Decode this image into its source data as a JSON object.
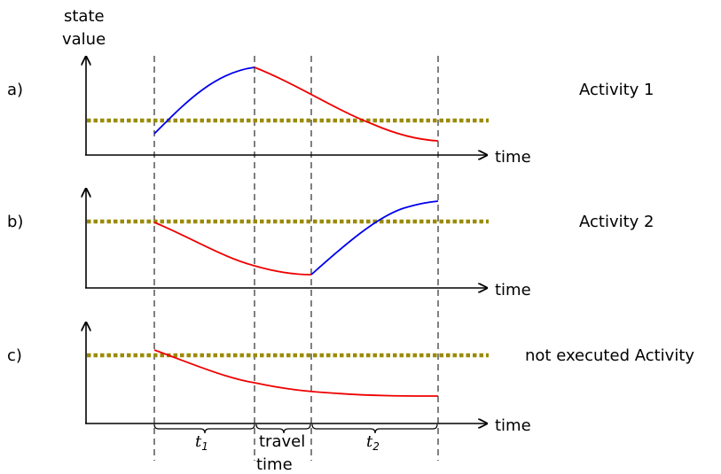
{
  "y_axis_label": [
    "state",
    "value"
  ],
  "panels": [
    {
      "label": "a)",
      "activity": "Activity 1",
      "x_label": "time",
      "curves": [
        {
          "color": "#0000ee",
          "trend": "rising",
          "phase": "t1"
        },
        {
          "color": "#ee0000",
          "trend": "falling",
          "phase": "travel-time and t2"
        }
      ]
    },
    {
      "label": "b)",
      "activity": "Activity 2",
      "x_label": "time",
      "curves": [
        {
          "color": "#ee0000",
          "trend": "falling",
          "phase": "t1 and travel-time"
        },
        {
          "color": "#0000ee",
          "trend": "rising",
          "phase": "t2"
        }
      ]
    },
    {
      "label": "c)",
      "activity": "not executed Activity",
      "x_label": "time",
      "curves": [
        {
          "color": "#ee0000",
          "trend": "falling",
          "phase": "t1, travel-time and t2"
        }
      ]
    }
  ],
  "threshold_color": "#9a8a00",
  "intervals": {
    "t1": {
      "base": "t",
      "sub": "1"
    },
    "travel": [
      "travel",
      "time"
    ],
    "t2": {
      "base": "t",
      "sub": "2"
    }
  }
}
